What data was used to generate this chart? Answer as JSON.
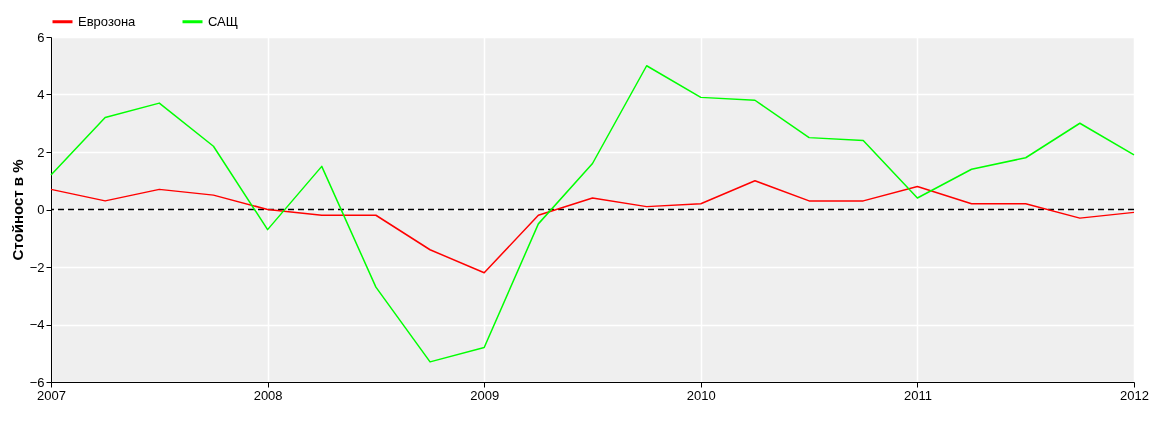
{
  "chart_data": {
    "type": "line",
    "ylabel": "Стойност в %",
    "x": [
      2007,
      2007.25,
      2007.5,
      2007.75,
      2008,
      2008.25,
      2008.5,
      2008.75,
      2009,
      2009.25,
      2009.5,
      2009.75,
      2010,
      2010.25,
      2010.5,
      2010.75,
      2011,
      2011.25,
      2011.5,
      2011.75,
      2012
    ],
    "series": [
      {
        "name": "Еврозона",
        "color": "#ff0000",
        "values": [
          0.7,
          0.3,
          0.7,
          0.5,
          0.0,
          -0.2,
          -0.2,
          -1.4,
          -2.2,
          -0.2,
          0.4,
          0.1,
          0.2,
          1.0,
          0.3,
          0.3,
          0.8,
          0.2,
          0.2,
          -0.3,
          -0.1
        ]
      },
      {
        "name": "САЩ",
        "color": "#00ff00",
        "values": [
          1.2,
          3.2,
          3.7,
          2.2,
          -0.7,
          1.5,
          -2.7,
          -5.3,
          -4.8,
          -0.5,
          1.6,
          5.0,
          3.9,
          3.8,
          2.5,
          2.4,
          0.4,
          1.4,
          1.8,
          3.0,
          1.9
        ]
      }
    ],
    "xlim": [
      2007,
      2012
    ],
    "xticks": [
      2007,
      2008,
      2009,
      2010,
      2011,
      2012
    ],
    "ylim": [
      -6,
      6
    ],
    "yticks": [
      -6,
      -4,
      -2,
      0,
      2,
      4,
      6
    ],
    "ref_lines": [
      {
        "axis": "y",
        "value": 0,
        "color": "#000000",
        "line_style": "dashed"
      }
    ],
    "grid": true,
    "legend": "top left",
    "marker": "none",
    "line_style": "solid"
  }
}
